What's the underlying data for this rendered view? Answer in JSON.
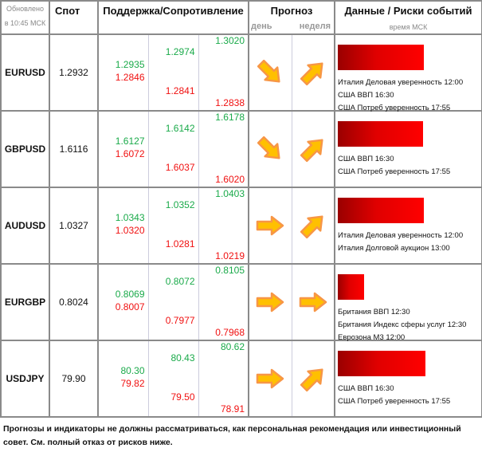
{
  "header": {
    "updated_line1": "Обновлено",
    "updated_line2": "в 10:45 МСК",
    "spot": "Спот",
    "sr": "Поддержка/Сопротивление",
    "forecast": "Прогноз",
    "day": "день",
    "week": "неделя",
    "events": "Данные / Риски событий",
    "time_note": "время МСК"
  },
  "rows": [
    {
      "pair": "EURUSD",
      "spot": "1.2932",
      "s1_up": "1.2935",
      "s1_dn": "1.2846",
      "s2_up": "1.2974",
      "s2_dn": "1.2841",
      "s3_up": "1.3020",
      "s3_dn": "1.2838",
      "day": "down-right",
      "week": "up-right",
      "risk": 0.98,
      "events": [
        "Италия Деловая уверенность 12:00",
        "США ВВП 16:30",
        "США Потреб уверенность 17:55"
      ]
    },
    {
      "pair": "GBPUSD",
      "spot": "1.6116",
      "s1_up": "1.6127",
      "s1_dn": "1.6072",
      "s2_up": "1.6142",
      "s2_dn": "1.6037",
      "s3_up": "1.6178",
      "s3_dn": "1.6020",
      "day": "down-right",
      "week": "up-right",
      "risk": 0.97,
      "events": [
        "США ВВП 16:30",
        "США Потреб уверенность 17:55"
      ]
    },
    {
      "pair": "AUDUSD",
      "spot": "1.0327",
      "s1_up": "1.0343",
      "s1_dn": "1.0320",
      "s2_up": "1.0352",
      "s2_dn": "1.0281",
      "s3_up": "1.0403",
      "s3_dn": "1.0219",
      "day": "right",
      "week": "up-right",
      "risk": 0.98,
      "events": [
        "Италия Деловая уверенность 12:00",
        "Италия Долговой аукцион 13:00"
      ]
    },
    {
      "pair": "EURGBP",
      "spot": "0.8024",
      "s1_up": "0.8069",
      "s1_dn": "0.8007",
      "s2_up": "0.8072",
      "s2_dn": "0.7977",
      "s3_up": "0.8105",
      "s3_dn": "0.7968",
      "day": "right",
      "week": "right",
      "risk": 0.3,
      "events": [
        "Британия ВВП 12:30",
        "Британия Индекс сферы услуг 12:30",
        "Еврозона М3 12:00"
      ]
    },
    {
      "pair": "USDJPY",
      "spot": "79.90",
      "s1_up": "80.30",
      "s1_dn": "79.82",
      "s2_up": "80.43",
      "s2_dn": "79.50",
      "s3_up": "80.62",
      "s3_dn": "78.91",
      "day": "right",
      "week": "up-right",
      "risk": 1.0,
      "events": [
        "США ВВП 16:30",
        "США Потреб уверенность 17:55"
      ]
    }
  ],
  "footer": "Прогнозы и индикаторы не должны рассматриваться, как персональная рекомендация или инвестиционный совет. См. полный отказ от рисков ниже."
}
